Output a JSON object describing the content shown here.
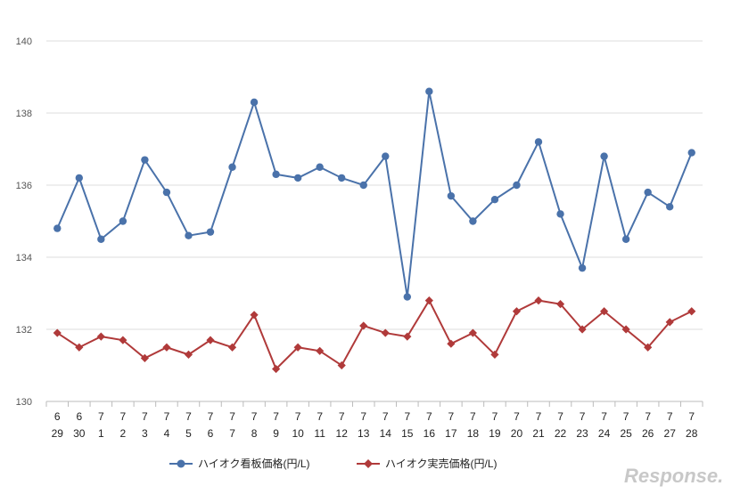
{
  "chart_data": {
    "type": "line",
    "categories": [
      [
        "6",
        "29"
      ],
      [
        "6",
        "30"
      ],
      [
        "7",
        "1"
      ],
      [
        "7",
        "2"
      ],
      [
        "7",
        "3"
      ],
      [
        "7",
        "4"
      ],
      [
        "7",
        "5"
      ],
      [
        "7",
        "6"
      ],
      [
        "7",
        "7"
      ],
      [
        "7",
        "8"
      ],
      [
        "7",
        "9"
      ],
      [
        "7",
        "10"
      ],
      [
        "7",
        "11"
      ],
      [
        "7",
        "12"
      ],
      [
        "7",
        "13"
      ],
      [
        "7",
        "14"
      ],
      [
        "7",
        "15"
      ],
      [
        "7",
        "16"
      ],
      [
        "7",
        "17"
      ],
      [
        "7",
        "18"
      ],
      [
        "7",
        "19"
      ],
      [
        "7",
        "20"
      ],
      [
        "7",
        "21"
      ],
      [
        "7",
        "22"
      ],
      [
        "7",
        "23"
      ],
      [
        "7",
        "24"
      ],
      [
        "7",
        "25"
      ],
      [
        "7",
        "26"
      ],
      [
        "7",
        "27"
      ],
      [
        "7",
        "28"
      ]
    ],
    "series": [
      {
        "name": "ハイオク看板価格(円/L)",
        "color": "#4a72aa",
        "marker": "circle",
        "values": [
          134.8,
          136.2,
          134.5,
          135.0,
          136.7,
          135.8,
          134.6,
          134.7,
          136.5,
          138.3,
          136.3,
          136.2,
          136.5,
          136.2,
          136.0,
          136.8,
          132.9,
          138.6,
          135.7,
          135.0,
          135.6,
          136.0,
          137.2,
          135.2,
          133.7,
          136.8,
          134.5,
          135.8,
          135.4,
          136.9
        ]
      },
      {
        "name": "ハイオク実売価格(円/L)",
        "color": "#b03a3a",
        "marker": "diamond",
        "values": [
          131.9,
          131.5,
          131.8,
          131.7,
          131.2,
          131.5,
          131.3,
          131.7,
          131.5,
          132.4,
          130.9,
          131.5,
          131.4,
          131.0,
          132.1,
          131.9,
          131.8,
          132.8,
          131.6,
          131.9,
          131.3,
          132.5,
          132.8,
          132.7,
          132.0,
          132.5,
          132.0,
          131.5,
          132.2,
          132.5
        ]
      }
    ],
    "ylim": [
      130,
      140
    ],
    "yticks": [
      "130",
      "132",
      "134",
      "136",
      "138",
      "140"
    ],
    "grid": true,
    "legend_position": "bottom"
  },
  "watermark": "Response."
}
